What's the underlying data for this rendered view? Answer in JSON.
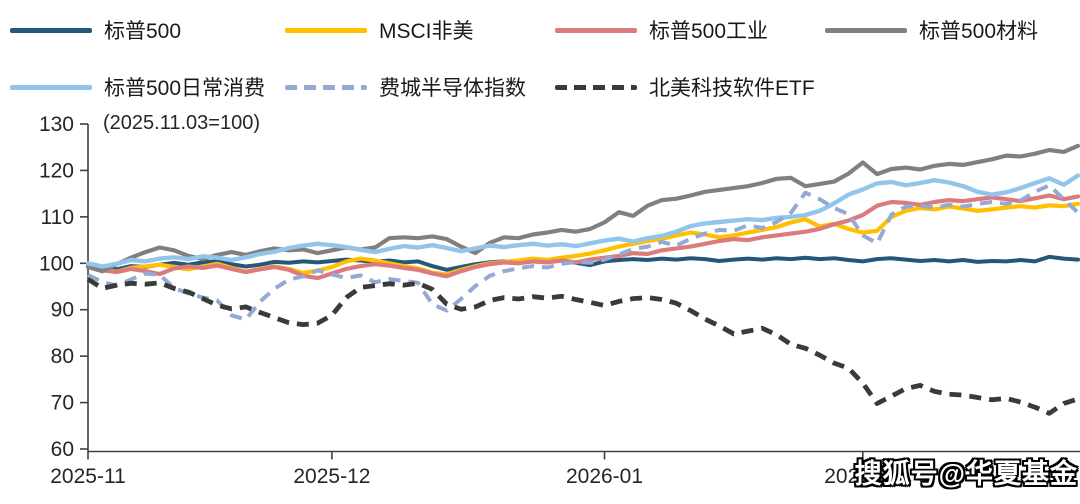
{
  "watermark": "搜狐号@华夏基金",
  "chart_data": {
    "type": "line",
    "title_annotation": "(2025.11.03=100)",
    "base_note": "2025.11.03=100",
    "x_tick_labels": [
      "2025-11",
      "2025-12",
      "2026-01",
      "2026-02"
    ],
    "x_tick_positions": [
      0,
      17,
      36,
      54
    ],
    "y_ticks": [
      60,
      70,
      80,
      90,
      100,
      110,
      120,
      130
    ],
    "ylim": [
      60,
      130
    ],
    "grid": false,
    "legend_position": "top",
    "axis_color": "#404040",
    "tick_label_color": "#262626",
    "series": [
      {
        "name": "标普500",
        "color": "#24587A",
        "dashed": false,
        "width": 4,
        "values": [
          100,
          99.1,
          98.7,
          99.4,
          99.2,
          99.7,
          100.1,
          99.7,
          100.2,
          100.4,
          99.8,
          99.3,
          99.7,
          100.3,
          100.1,
          100.4,
          100.2,
          100.5,
          100.8,
          100.6,
          100.3,
          100.6,
          100.2,
          100.4,
          99.4,
          98.6,
          99.2,
          99.8,
          100.2,
          100.4,
          100.2,
          100.5,
          100.3,
          100.6,
          100.1,
          99.6,
          100.4,
          100.7,
          100.9,
          100.7,
          101,
          100.8,
          101.1,
          100.9,
          100.5,
          100.8,
          101,
          100.8,
          101.1,
          100.9,
          101.2,
          100.9,
          101.1,
          100.7,
          100.4,
          100.9,
          101.1,
          100.8,
          100.5,
          100.7,
          100.4,
          100.7,
          100.3,
          100.5,
          100.4,
          100.7,
          100.4,
          101.4,
          101,
          100.8
        ]
      },
      {
        "name": "MSCI非美",
        "color": "#FFC000",
        "dashed": false,
        "width": 4.2,
        "values": [
          99.4,
          98.6,
          98.2,
          99,
          99.3,
          99.7,
          99.2,
          98.7,
          99.3,
          99.9,
          99,
          98.2,
          98.8,
          99.3,
          98.8,
          97.9,
          98.4,
          99.2,
          100.4,
          101,
          100.6,
          100,
          99.4,
          98.9,
          98,
          97.6,
          98.6,
          99.4,
          100,
          100.3,
          100.6,
          101,
          100.7,
          101.2,
          101.6,
          102.1,
          102.8,
          103.6,
          104.2,
          104.8,
          105.3,
          106,
          106.6,
          106.2,
          105.6,
          106,
          106.6,
          107.2,
          107.8,
          108.8,
          109.5,
          107.9,
          108.5,
          107.4,
          106.6,
          107,
          110,
          111.3,
          111.9,
          111.6,
          112.2,
          111.8,
          111.3,
          111.6,
          112,
          112.3,
          112,
          112.5,
          112.3,
          112.8
        ]
      },
      {
        "name": "标普500工业",
        "color": "#DB7B7E",
        "dashed": false,
        "width": 4.2,
        "values": [
          99.3,
          98.5,
          98.1,
          98.8,
          98.3,
          97.7,
          98.9,
          99.3,
          99,
          99.5,
          98.8,
          98.1,
          98.7,
          99.2,
          98.6,
          97.3,
          96.8,
          97.8,
          98.8,
          99.4,
          99.8,
          99.5,
          99,
          98.6,
          97.8,
          97.2,
          98.3,
          99.2,
          99.8,
          100.2,
          100,
          100.4,
          100.2,
          100.6,
          100.2,
          100.8,
          101.2,
          101.6,
          102.2,
          102,
          102.8,
          103.2,
          103.6,
          104.2,
          104.8,
          105.2,
          105,
          105.6,
          106,
          106.4,
          106.8,
          107.4,
          108.4,
          109.2,
          110.4,
          112.4,
          113.2,
          113,
          112.6,
          113.2,
          113.6,
          113.4,
          113.8,
          114.2,
          113.8,
          113.4,
          114,
          114.6,
          113.8,
          114.4
        ]
      },
      {
        "name": "标普500材料",
        "color": "#808080",
        "dashed": false,
        "width": 4.2,
        "values": [
          99.2,
          98.3,
          99.8,
          101.2,
          102.4,
          103.4,
          102.8,
          101.6,
          100.9,
          101.8,
          102.4,
          101.8,
          102.6,
          103.2,
          102.8,
          103,
          102.2,
          102.8,
          103.4,
          103,
          103.4,
          105.4,
          105.6,
          105.4,
          105.8,
          105.2,
          103.6,
          102.2,
          104.4,
          105.6,
          105.4,
          106.2,
          106.6,
          107.2,
          106.8,
          107.4,
          108.8,
          111,
          110.2,
          112.4,
          113.6,
          113.9,
          114.6,
          115.4,
          115.8,
          116.2,
          116.6,
          117.3,
          118.2,
          118.4,
          116.6,
          117.1,
          117.6,
          119.3,
          121.7,
          119.2,
          120.3,
          120.6,
          120.2,
          121,
          121.4,
          121.2,
          121.8,
          122.4,
          123.2,
          123,
          123.6,
          124.4,
          124,
          125.3
        ]
      },
      {
        "name": "标普500日常消费",
        "color": "#92C5EC",
        "dashed": false,
        "width": 4.4,
        "values": [
          100,
          99.3,
          99.9,
          100.7,
          100.4,
          101,
          101.3,
          100.9,
          101.5,
          101.2,
          100.7,
          101.3,
          102,
          102.5,
          103.3,
          103.8,
          104.2,
          103.9,
          103.5,
          102.9,
          102.4,
          103.1,
          103.7,
          103.4,
          103.9,
          103.3,
          102.6,
          103.2,
          103.8,
          103.5,
          103.9,
          104.2,
          103.8,
          104.1,
          103.7,
          104.3,
          104.9,
          105.3,
          104.7,
          105.4,
          105.9,
          106.8,
          108,
          108.6,
          108.9,
          109.2,
          109.5,
          109.3,
          109.8,
          110,
          110.4,
          111.3,
          112.9,
          114.8,
          115.9,
          117.2,
          117.5,
          116.8,
          117.3,
          117.9,
          117.4,
          116.6,
          115.4,
          114.8,
          115.3,
          116.2,
          117.3,
          118.3,
          116.9,
          118.9
        ]
      },
      {
        "name": "费城半导体指数",
        "color": "#94A9D4",
        "dashed": true,
        "width": 4,
        "values": [
          97.5,
          96,
          95.2,
          96.5,
          97.8,
          97.5,
          94.7,
          93.5,
          92.6,
          92,
          88.8,
          87.9,
          91.8,
          94.5,
          96.5,
          97.2,
          98.5,
          97.6,
          96.8,
          97.4,
          95.9,
          96.6,
          96.2,
          95.8,
          91.2,
          89.8,
          92.3,
          95.1,
          97.3,
          98.3,
          98.9,
          99.4,
          99.1,
          99.9,
          100.3,
          100.1,
          100.8,
          101.9,
          103.1,
          103.6,
          104.6,
          103.8,
          105.3,
          106.4,
          107.2,
          107,
          108.2,
          107.6,
          108.9,
          110.9,
          115.2,
          113.8,
          111.9,
          110.6,
          106,
          104.3,
          110.5,
          112.2,
          112.4,
          112,
          112.6,
          112.2,
          112.8,
          113.2,
          112.8,
          113.5,
          115.4,
          116.8,
          113.8,
          110.9
        ]
      },
      {
        "name": "北美科技软件ETF",
        "color": "#3A3A3A",
        "dashed": true,
        "width": 4.8,
        "values": [
          96.6,
          94.6,
          95.3,
          95.7,
          95.5,
          95.8,
          94.6,
          93.8,
          92.4,
          91,
          90.2,
          90.6,
          89.4,
          88.3,
          87.2,
          86.8,
          87.1,
          88.8,
          92.6,
          94.8,
          95.2,
          95.6,
          95.3,
          95.7,
          94.4,
          91.2,
          90.1,
          90.6,
          92,
          92.6,
          92.3,
          92.8,
          92.5,
          92.9,
          92.2,
          91.6,
          90.9,
          91.8,
          92.4,
          92.6,
          92.2,
          91.4,
          89.8,
          88,
          86.5,
          84.8,
          85.4,
          86,
          84.6,
          82.5,
          81.7,
          80.2,
          78.5,
          77.4,
          74.2,
          69.8,
          71.4,
          73,
          73.7,
          72.4,
          71.8,
          71.6,
          71.1,
          70.6,
          70.9,
          70.1,
          69,
          67.7,
          69.8,
          70.8
        ]
      }
    ]
  }
}
